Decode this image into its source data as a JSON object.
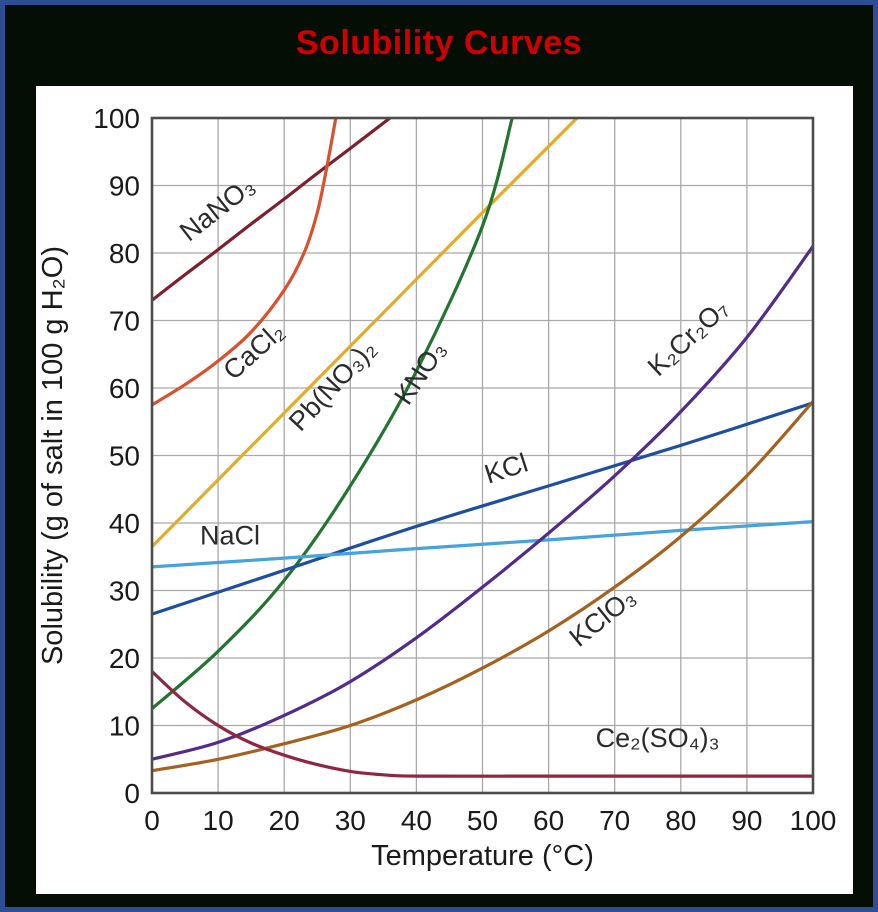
{
  "window": {
    "background_color": "#050e05",
    "border_color": "#2d4d94",
    "panel_color": "#ffffff",
    "title_color": "#d10000"
  },
  "chart_data": {
    "type": "line",
    "title": "Solubility Curves",
    "xlabel": "Temperature (°C)",
    "ylabel": "Solubility (g of salt in 100 g H₂O)",
    "xlim": [
      0,
      100
    ],
    "ylim": [
      0,
      100
    ],
    "xticks": [
      0,
      10,
      20,
      30,
      40,
      50,
      60,
      70,
      80,
      90,
      100
    ],
    "yticks": [
      0,
      10,
      20,
      30,
      40,
      50,
      60,
      70,
      80,
      90,
      100
    ],
    "grid": true,
    "grid_color": "#a9a9a9",
    "frame_color": "#4d4d4d",
    "tick_color": "#1a1a1a",
    "label_color": "#2b2b2b",
    "legend_position": "inline-curve-labels",
    "series": [
      {
        "id": "nano3",
        "name": "NaNO₃",
        "color": "#7d1f2d",
        "points": [
          [
            0,
            73
          ],
          [
            5,
            76.8
          ],
          [
            10,
            80.5
          ],
          [
            15,
            84.3
          ],
          [
            20,
            88
          ],
          [
            25,
            91.8
          ],
          [
            30,
            95.5
          ],
          [
            36,
            100
          ]
        ],
        "label": {
          "text": "NaNO₃",
          "x": 10.7,
          "y": 85.5,
          "rotation": -38
        }
      },
      {
        "id": "cacl2",
        "name": "CaCl₂",
        "color": "#d9512c",
        "points": [
          [
            0,
            57.5
          ],
          [
            5,
            60.5
          ],
          [
            10,
            64
          ],
          [
            15,
            68.3
          ],
          [
            20,
            74.5
          ],
          [
            23,
            80
          ],
          [
            25,
            86
          ],
          [
            26.5,
            93
          ],
          [
            27.8,
            100
          ]
        ],
        "label": {
          "text": "CaCl₂",
          "x": 16.3,
          "y": 64.5,
          "rotation": -42
        }
      },
      {
        "id": "pbno32",
        "name": "Pb(NO₃)₂",
        "color": "#e3ac28",
        "points": [
          [
            0,
            36.5
          ],
          [
            10,
            46.4
          ],
          [
            20,
            56.3
          ],
          [
            30,
            66.2
          ],
          [
            40,
            76.1
          ],
          [
            50,
            86
          ],
          [
            64.3,
            100
          ]
        ],
        "label": {
          "text": "Pb(NO₃)₂",
          "x": 28.3,
          "y": 59.5,
          "rotation": -47
        }
      },
      {
        "id": "kno3",
        "name": "KNO₃",
        "color": "#22742f",
        "points": [
          [
            0,
            12.5
          ],
          [
            10,
            21
          ],
          [
            20,
            31.5
          ],
          [
            30,
            45.5
          ],
          [
            40,
            62.5
          ],
          [
            50,
            84
          ],
          [
            54.5,
            100
          ]
        ],
        "label": {
          "text": "KNO₃",
          "x": 41.7,
          "y": 61.5,
          "rotation": -56
        }
      },
      {
        "id": "kcl",
        "name": "KCl",
        "color": "#1e4f9e",
        "points": [
          [
            0,
            26.5
          ],
          [
            20,
            33
          ],
          [
            40,
            39.5
          ],
          [
            60,
            45.5
          ],
          [
            80,
            51.5
          ],
          [
            100,
            57.8
          ]
        ],
        "label": {
          "text": "KCl",
          "x": 54,
          "y": 46.8,
          "rotation": -18
        }
      },
      {
        "id": "nacl",
        "name": "NaCl",
        "color": "#45a4dc",
        "points": [
          [
            0,
            33.5
          ],
          [
            20,
            34.8
          ],
          [
            40,
            36.2
          ],
          [
            60,
            37.5
          ],
          [
            80,
            38.9
          ],
          [
            100,
            40.2
          ]
        ],
        "label": {
          "text": "NaCl",
          "x": 11.8,
          "y": 36.8,
          "rotation": 0
        }
      },
      {
        "id": "k2cr2o7",
        "name": "K₂Cr₂O₇",
        "color": "#532b8a",
        "points": [
          [
            0,
            5
          ],
          [
            10,
            7.5
          ],
          [
            20,
            11.5
          ],
          [
            30,
            16.5
          ],
          [
            40,
            23
          ],
          [
            50,
            30.5
          ],
          [
            60,
            38.5
          ],
          [
            70,
            47
          ],
          [
            80,
            56.5
          ],
          [
            90,
            67.5
          ],
          [
            100,
            81
          ]
        ],
        "label": {
          "text": "K₂Cr₂O₇",
          "x": 82,
          "y": 66.5,
          "rotation": -43
        }
      },
      {
        "id": "kclo3",
        "name": "KClO₃",
        "color": "#a5611e",
        "points": [
          [
            0,
            3.3
          ],
          [
            10,
            5
          ],
          [
            20,
            7.3
          ],
          [
            30,
            10
          ],
          [
            40,
            13.8
          ],
          [
            50,
            18.5
          ],
          [
            60,
            24
          ],
          [
            70,
            30.5
          ],
          [
            80,
            38
          ],
          [
            90,
            47
          ],
          [
            100,
            58
          ]
        ],
        "label": {
          "text": "KClO₃",
          "x": 69,
          "y": 25,
          "rotation": -39
        }
      },
      {
        "id": "ce2so43",
        "name": "Ce₂(SO₄)₃",
        "color": "#8e2742",
        "points": [
          [
            0,
            18
          ],
          [
            5,
            13.5
          ],
          [
            10,
            10
          ],
          [
            15,
            7.4
          ],
          [
            20,
            5.6
          ],
          [
            25,
            4.2
          ],
          [
            30,
            3.2
          ],
          [
            35,
            2.7
          ],
          [
            40,
            2.5
          ],
          [
            60,
            2.5
          ],
          [
            80,
            2.5
          ],
          [
            100,
            2.5
          ]
        ],
        "label": {
          "text": "Ce₂(SO₄)₃",
          "x": 76.5,
          "y": 6.8,
          "rotation": 0
        }
      }
    ]
  }
}
